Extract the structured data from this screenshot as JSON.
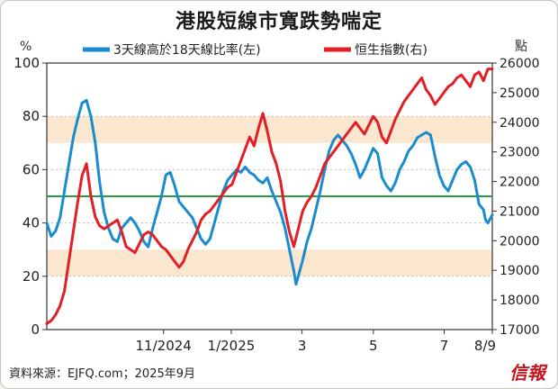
{
  "title": "港股短線市寬跌勢喘定",
  "source": "資料來源：EJFQ.com；2025年9月",
  "brand": "信報",
  "colors": {
    "breadth": "#1a8ccd",
    "hsi": "#e21f26",
    "band": "#fbe7cf",
    "ref": "#2a9d3a",
    "axis": "#333333",
    "grid": "#bbbbbb"
  },
  "chart_data": {
    "type": "line",
    "x_tick_labels": [
      "11/2024",
      "1/2025",
      "3",
      "5",
      "7",
      "8/9"
    ],
    "left_axis": {
      "unit": "%",
      "range": [
        0,
        100
      ],
      "ticks": [
        0,
        20,
        40,
        60,
        80,
        100
      ]
    },
    "right_axis": {
      "unit": "點",
      "range": [
        17000,
        26000
      ],
      "ticks": [
        17000,
        18000,
        19000,
        20000,
        21000,
        22000,
        23000,
        24000,
        25000,
        26000
      ]
    },
    "shaded_bands_pct": [
      [
        70,
        80
      ],
      [
        20,
        30
      ]
    ],
    "reference_line_pct": 50,
    "series": [
      {
        "name": "3天線高於18天線比率(左)",
        "axis": "left",
        "values": [
          [
            0,
            40
          ],
          [
            2,
            35
          ],
          [
            4,
            37
          ],
          [
            6,
            42
          ],
          [
            8,
            52
          ],
          [
            10,
            62
          ],
          [
            12,
            72
          ],
          [
            14,
            79
          ],
          [
            16,
            85
          ],
          [
            18,
            86
          ],
          [
            20,
            80
          ],
          [
            22,
            70
          ],
          [
            24,
            55
          ],
          [
            26,
            44
          ],
          [
            28,
            38
          ],
          [
            30,
            34
          ],
          [
            32,
            33
          ],
          [
            34,
            38
          ],
          [
            36,
            40
          ],
          [
            38,
            42
          ],
          [
            40,
            40
          ],
          [
            42,
            37
          ],
          [
            44,
            33
          ],
          [
            46,
            31
          ],
          [
            48,
            38
          ],
          [
            50,
            44
          ],
          [
            52,
            50
          ],
          [
            54,
            58
          ],
          [
            56,
            59
          ],
          [
            58,
            54
          ],
          [
            60,
            48
          ],
          [
            62,
            46
          ],
          [
            64,
            44
          ],
          [
            66,
            42
          ],
          [
            68,
            38
          ],
          [
            70,
            34
          ],
          [
            72,
            32
          ],
          [
            74,
            34
          ],
          [
            76,
            40
          ],
          [
            78,
            46
          ],
          [
            80,
            52
          ],
          [
            82,
            56
          ],
          [
            84,
            58
          ],
          [
            86,
            60
          ],
          [
            88,
            59
          ],
          [
            90,
            61
          ],
          [
            92,
            59
          ],
          [
            94,
            58
          ],
          [
            96,
            56
          ],
          [
            98,
            55
          ],
          [
            100,
            57
          ],
          [
            102,
            52
          ],
          [
            104,
            48
          ],
          [
            106,
            44
          ],
          [
            108,
            38
          ],
          [
            110,
            30
          ],
          [
            112,
            22
          ],
          [
            113,
            17
          ],
          [
            114,
            20
          ],
          [
            116,
            26
          ],
          [
            118,
            33
          ],
          [
            120,
            38
          ],
          [
            122,
            45
          ],
          [
            124,
            52
          ],
          [
            126,
            60
          ],
          [
            128,
            67
          ],
          [
            130,
            71
          ],
          [
            132,
            73
          ],
          [
            134,
            71
          ],
          [
            136,
            69
          ],
          [
            138,
            66
          ],
          [
            140,
            62
          ],
          [
            142,
            57
          ],
          [
            144,
            60
          ],
          [
            146,
            64
          ],
          [
            148,
            68
          ],
          [
            150,
            66
          ],
          [
            152,
            57
          ],
          [
            154,
            54
          ],
          [
            156,
            52
          ],
          [
            158,
            55
          ],
          [
            160,
            60
          ],
          [
            162,
            63
          ],
          [
            164,
            67
          ],
          [
            166,
            69
          ],
          [
            168,
            72
          ],
          [
            170,
            73
          ],
          [
            172,
            74
          ],
          [
            174,
            73
          ],
          [
            176,
            65
          ],
          [
            178,
            58
          ],
          [
            180,
            54
          ],
          [
            182,
            52
          ],
          [
            184,
            56
          ],
          [
            186,
            60
          ],
          [
            188,
            62
          ],
          [
            190,
            63
          ],
          [
            192,
            61
          ],
          [
            194,
            56
          ],
          [
            196,
            47
          ],
          [
            198,
            45
          ],
          [
            199,
            41
          ],
          [
            200,
            40
          ],
          [
            202,
            43
          ]
        ]
      },
      {
        "name": "恒生指數(右)",
        "axis": "right",
        "values": [
          [
            0,
            17200
          ],
          [
            2,
            17300
          ],
          [
            4,
            17500
          ],
          [
            6,
            17800
          ],
          [
            8,
            18300
          ],
          [
            10,
            19300
          ],
          [
            12,
            20300
          ],
          [
            14,
            21300
          ],
          [
            16,
            22200
          ],
          [
            18,
            22600
          ],
          [
            20,
            21500
          ],
          [
            22,
            20800
          ],
          [
            24,
            20500
          ],
          [
            26,
            20400
          ],
          [
            28,
            20500
          ],
          [
            30,
            20600
          ],
          [
            32,
            20700
          ],
          [
            34,
            20300
          ],
          [
            36,
            19800
          ],
          [
            38,
            19700
          ],
          [
            40,
            19600
          ],
          [
            42,
            19900
          ],
          [
            44,
            20200
          ],
          [
            46,
            20300
          ],
          [
            48,
            20200
          ],
          [
            50,
            20000
          ],
          [
            52,
            19800
          ],
          [
            54,
            19700
          ],
          [
            56,
            19500
          ],
          [
            58,
            19300
          ],
          [
            60,
            19100
          ],
          [
            62,
            19300
          ],
          [
            64,
            19700
          ],
          [
            66,
            20000
          ],
          [
            68,
            20300
          ],
          [
            70,
            20700
          ],
          [
            72,
            20900
          ],
          [
            74,
            21000
          ],
          [
            76,
            21200
          ],
          [
            78,
            21400
          ],
          [
            80,
            21600
          ],
          [
            82,
            21800
          ],
          [
            84,
            21900
          ],
          [
            86,
            22300
          ],
          [
            88,
            22700
          ],
          [
            90,
            23100
          ],
          [
            92,
            23500
          ],
          [
            94,
            23200
          ],
          [
            96,
            23800
          ],
          [
            98,
            24300
          ],
          [
            100,
            23700
          ],
          [
            102,
            23000
          ],
          [
            104,
            22600
          ],
          [
            106,
            22000
          ],
          [
            108,
            21000
          ],
          [
            110,
            20300
          ],
          [
            112,
            19800
          ],
          [
            114,
            20400
          ],
          [
            116,
            21000
          ],
          [
            118,
            21300
          ],
          [
            120,
            21500
          ],
          [
            122,
            21800
          ],
          [
            124,
            22200
          ],
          [
            126,
            22600
          ],
          [
            128,
            22800
          ],
          [
            130,
            23000
          ],
          [
            132,
            23200
          ],
          [
            134,
            23400
          ],
          [
            136,
            23600
          ],
          [
            138,
            23800
          ],
          [
            140,
            24000
          ],
          [
            142,
            23800
          ],
          [
            144,
            23600
          ],
          [
            146,
            23900
          ],
          [
            148,
            24200
          ],
          [
            150,
            24000
          ],
          [
            152,
            23500
          ],
          [
            154,
            23300
          ],
          [
            156,
            23700
          ],
          [
            158,
            24100
          ],
          [
            160,
            24400
          ],
          [
            162,
            24700
          ],
          [
            164,
            24900
          ],
          [
            166,
            25100
          ],
          [
            168,
            25300
          ],
          [
            170,
            25500
          ],
          [
            172,
            25100
          ],
          [
            174,
            24900
          ],
          [
            176,
            24600
          ],
          [
            178,
            24800
          ],
          [
            180,
            25000
          ],
          [
            182,
            25200
          ],
          [
            184,
            25300
          ],
          [
            186,
            25500
          ],
          [
            188,
            25600
          ],
          [
            190,
            25400
          ],
          [
            192,
            25200
          ],
          [
            194,
            25600
          ],
          [
            196,
            25700
          ],
          [
            198,
            25400
          ],
          [
            200,
            25800
          ],
          [
            202,
            25800
          ]
        ]
      }
    ]
  }
}
